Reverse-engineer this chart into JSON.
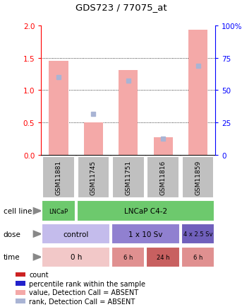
{
  "title": "GDS723 / 77075_at",
  "samples": [
    "GSM11881",
    "GSM11745",
    "GSM11751",
    "GSM11816",
    "GSM11859"
  ],
  "bar_values": [
    1.45,
    0.5,
    1.31,
    0.27,
    1.93
  ],
  "rank_values": [
    1.2,
    0.63,
    1.15,
    0.25,
    1.38
  ],
  "bar_color": "#F4A9A8",
  "rank_color": "#A9B4D4",
  "ylim_left": [
    0,
    2
  ],
  "ylim_right": [
    0,
    100
  ],
  "yticks_left": [
    0,
    0.5,
    1.0,
    1.5,
    2.0
  ],
  "yticks_right": [
    0,
    25,
    50,
    75,
    100
  ],
  "cell_line_data": [
    {
      "label": "LNCaP",
      "span": [
        0,
        1
      ],
      "color": "#6DC96D"
    },
    {
      "label": "LNCaP C4-2",
      "span": [
        1,
        5
      ],
      "color": "#6DC96D"
    }
  ],
  "dose_data": [
    {
      "label": "control",
      "span": [
        0,
        2
      ],
      "color": "#C4BCEC"
    },
    {
      "label": "1 x 10 Sv",
      "span": [
        2,
        4
      ],
      "color": "#9080D0"
    },
    {
      "label": "4 x 2.5 Sv",
      "span": [
        4,
        5
      ],
      "color": "#7060BC"
    }
  ],
  "time_data": [
    {
      "label": "0 h",
      "span": [
        0,
        2
      ],
      "color": "#F2C8C8"
    },
    {
      "label": "6 h",
      "span": [
        2,
        3
      ],
      "color": "#E09090"
    },
    {
      "label": "24 h",
      "span": [
        3,
        4
      ],
      "color": "#C86060"
    },
    {
      "label": "6 h",
      "span": [
        4,
        5
      ],
      "color": "#E09090"
    }
  ],
  "legend_items": [
    {
      "label": "count",
      "color": "#CC2222"
    },
    {
      "label": "percentile rank within the sample",
      "color": "#2222CC"
    },
    {
      "label": "value, Detection Call = ABSENT",
      "color": "#F4A9A8"
    },
    {
      "label": "rank, Detection Call = ABSENT",
      "color": "#A9B4D4"
    }
  ],
  "row_labels": [
    "cell line",
    "dose",
    "time"
  ],
  "sample_bg_color": "#C0C0C0",
  "arrow_color": "#888888"
}
